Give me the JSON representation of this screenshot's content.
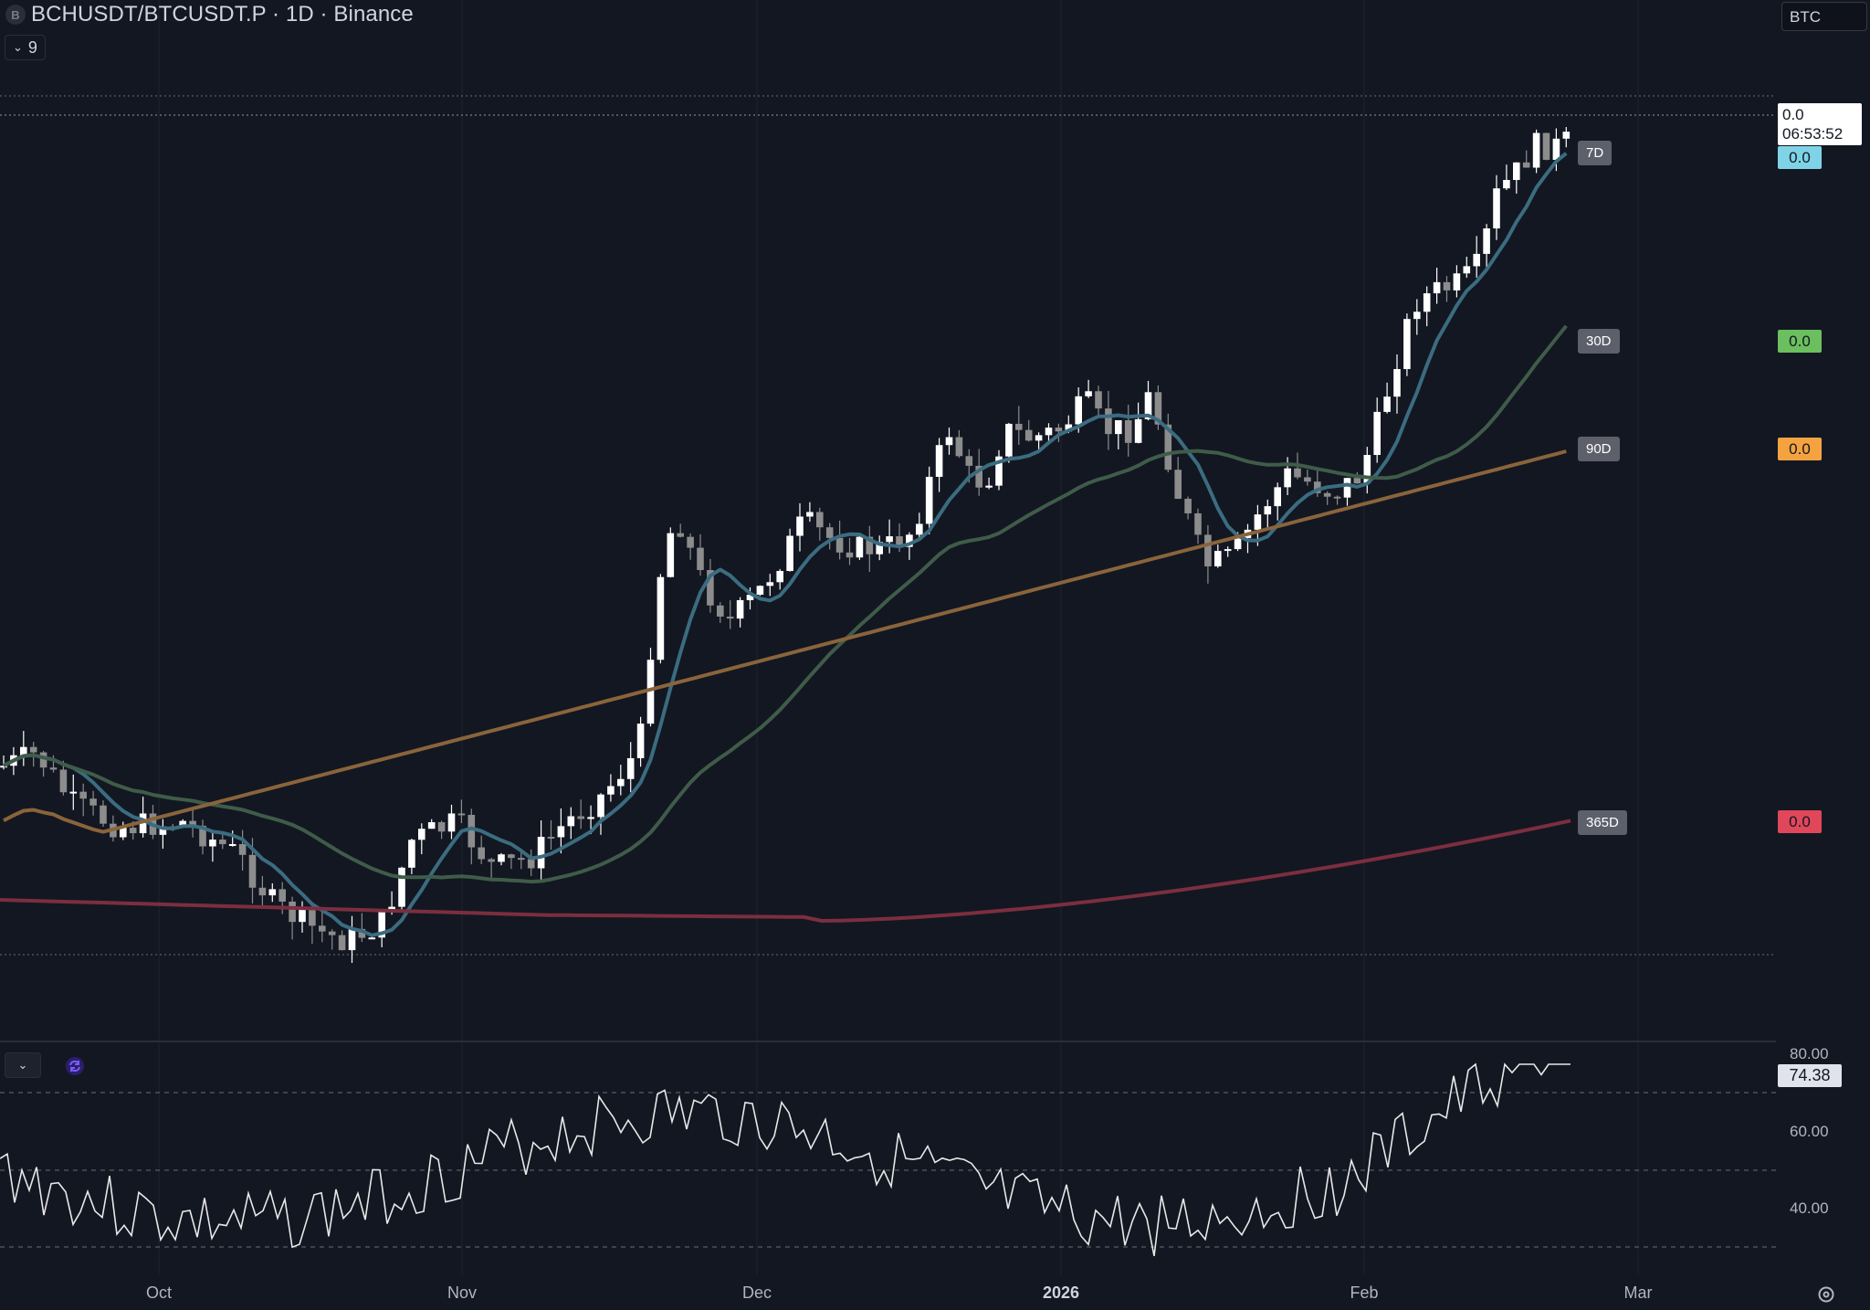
{
  "header": {
    "symbol_icon": "B",
    "title": "BCHUSDT/BTCUSDT.P · 1D · Binance",
    "indicator_count": "9"
  },
  "currency_button": {
    "label": "BTC"
  },
  "price_scale": {
    "last_price": "0.0",
    "countdown": "06:53:52",
    "ma_values": [
      {
        "value": "0.0",
        "color": "#7fd3e6"
      },
      {
        "value": "0.0",
        "color": "#6bbf5e"
      },
      {
        "value": "0.0",
        "color": "#f5a340"
      },
      {
        "value": "0.0",
        "color": "#e0475a"
      }
    ]
  },
  "ma_tags": [
    "7D",
    "30D",
    "90D",
    "365D"
  ],
  "rsi": {
    "ticks": [
      "80.00",
      "60.00",
      "40.00"
    ],
    "current": "74.38"
  },
  "time_axis": {
    "labels": [
      "Oct",
      "Nov",
      "Dec",
      "2026",
      "Feb",
      "Mar"
    ],
    "bold_label_index": 3
  },
  "colors": {
    "background": "#131722",
    "grid": "#1f2330",
    "candle_up": "#ffffff",
    "candle_down": "#8c8c8c",
    "ma7": "#3b6c80",
    "ma30": "#3f5c49",
    "ma90": "#8a643a",
    "ma365": "#7c2e3f",
    "rsi_line": "#e8e8e8"
  },
  "icons": {
    "indicator_toggle": "chevron-down-icon",
    "rsi_toggle": "chevron-down-icon",
    "rsi_sync": "sync-icon",
    "settings": "gear-icon"
  }
}
